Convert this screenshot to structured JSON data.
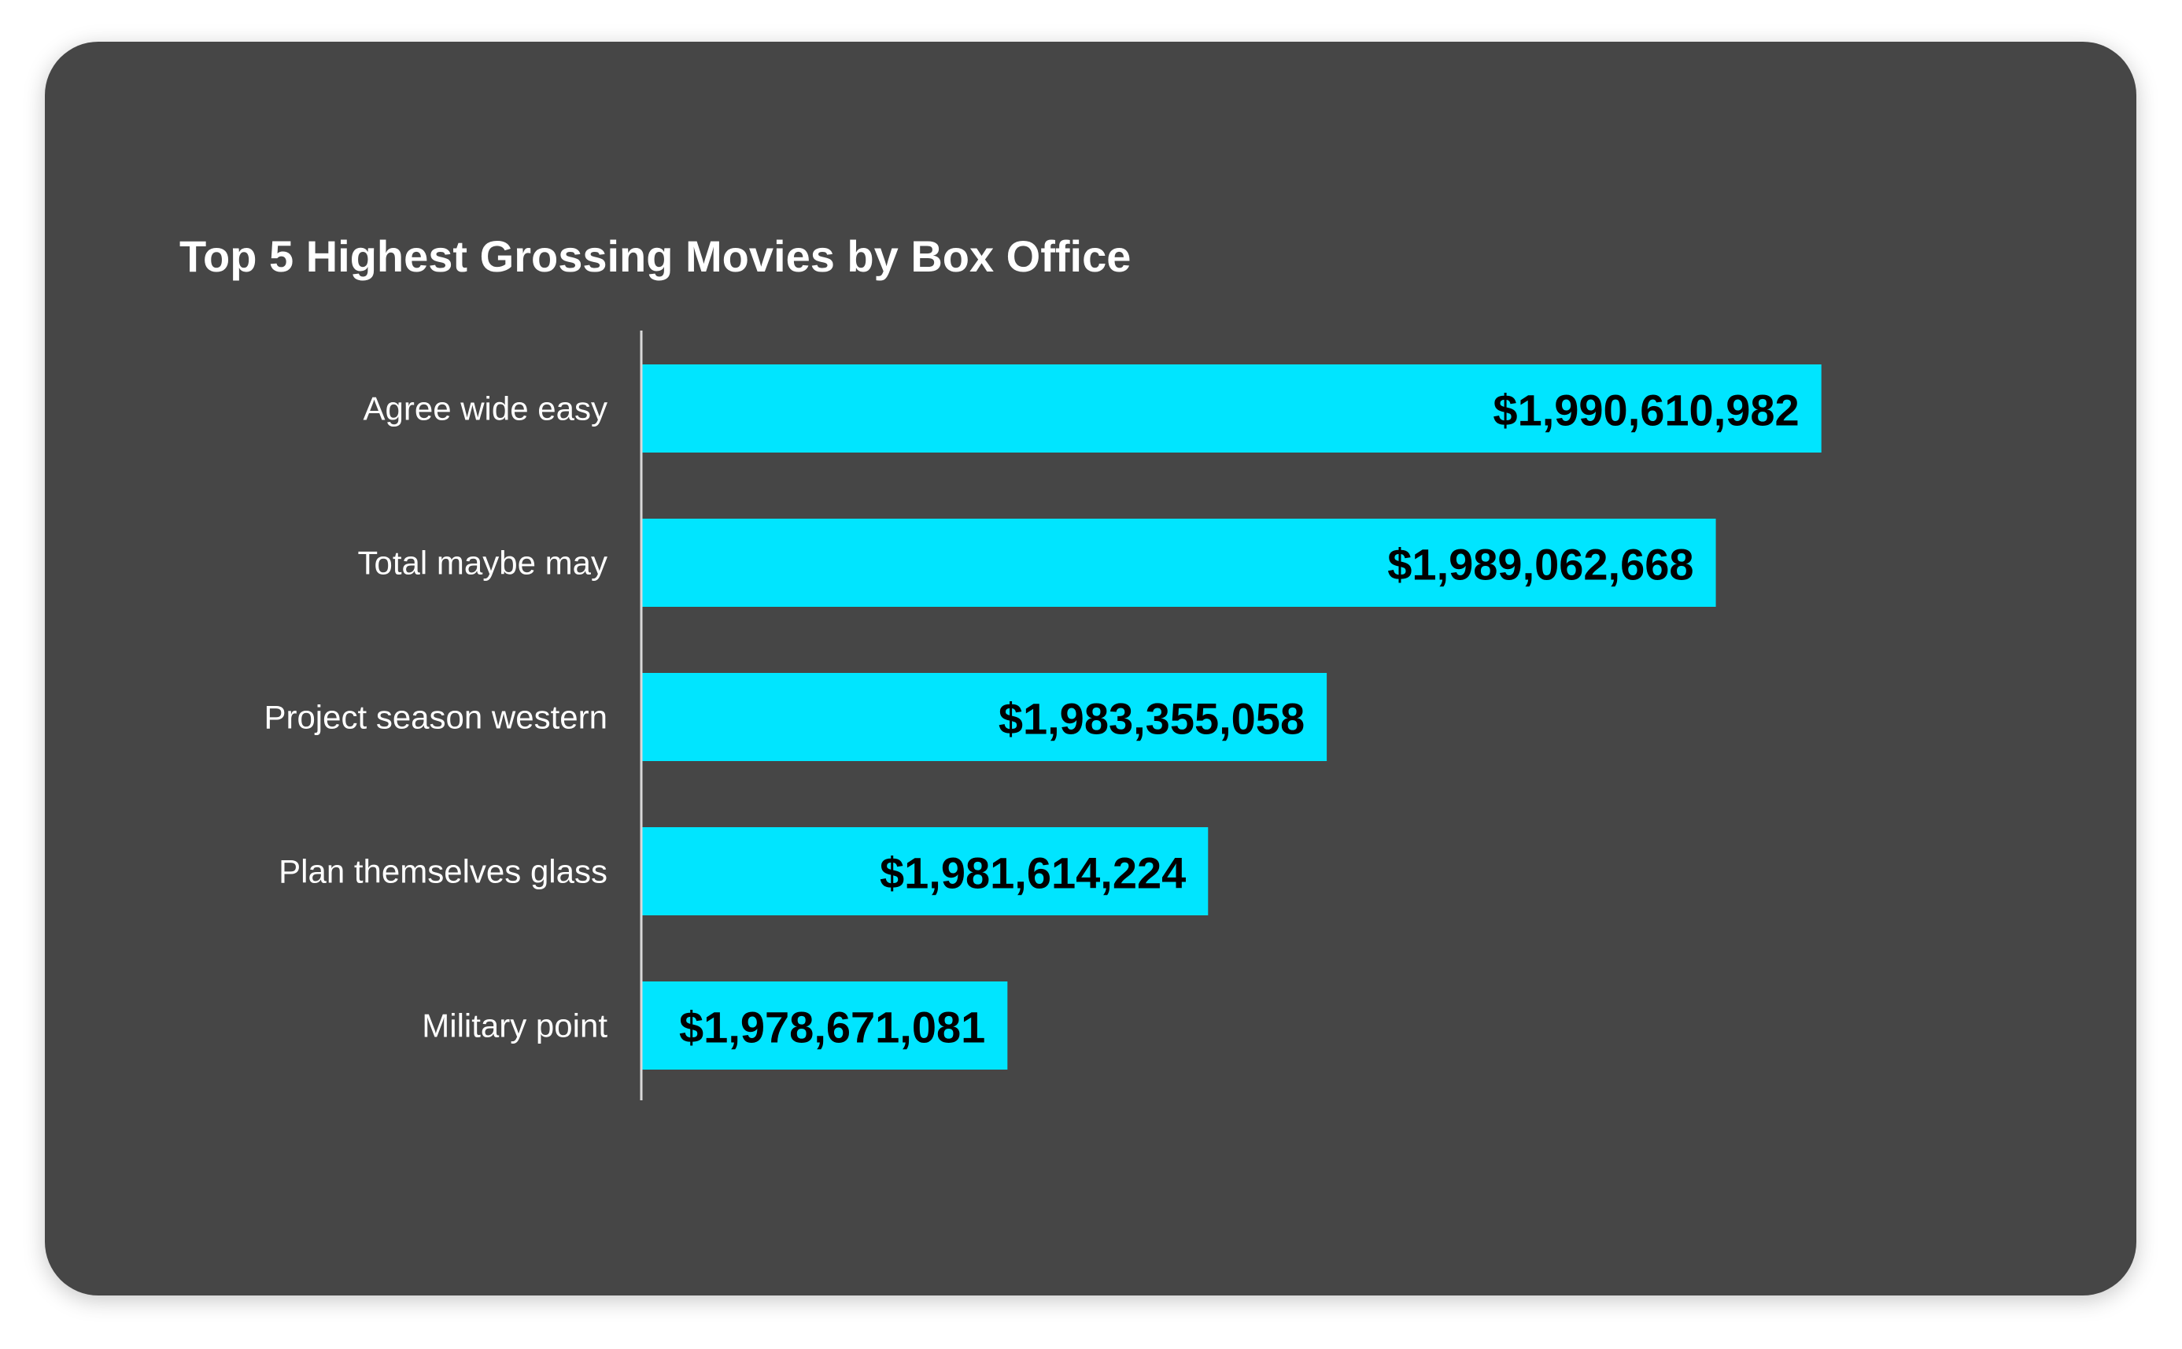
{
  "chart_data": {
    "type": "bar",
    "orientation": "horizontal",
    "title": "Top 5 Highest Grossing Movies by Box Office",
    "categories": [
      "Agree wide easy",
      "Total maybe may",
      "Project season western",
      "Plan themselves glass",
      "Military point"
    ],
    "values": [
      1990610982,
      1989062668,
      1983355058,
      1981614224,
      1978671081
    ],
    "value_labels": [
      "$1,990,610,982",
      "$1,989,062,668",
      "$1,983,355,058",
      "$1,981,614,224",
      "$1,978,671,081"
    ],
    "xlim": [
      1973300000,
      1992750000
    ],
    "grid": false,
    "legend": "none",
    "colors": {
      "bar": "#00E5FF",
      "background": "#464646",
      "text": "#FFFFFF",
      "value_text": "#000000",
      "axis": "#D9D9D9"
    }
  }
}
